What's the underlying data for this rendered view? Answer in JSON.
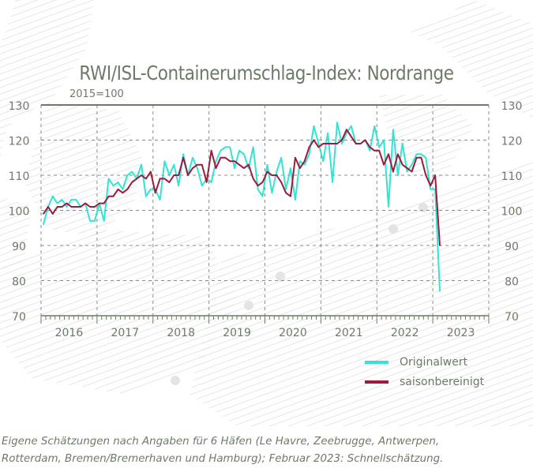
{
  "chart_data": {
    "type": "line",
    "title": "RWI/ISL-Containerumschlag-Index: Nordrange",
    "subtitle": "2015=100",
    "x_start": "2016-01",
    "x_end": "2023-02",
    "frequency": "monthly",
    "xtick_labels": [
      "2016",
      "2017",
      "2018",
      "2019",
      "2020",
      "2021",
      "2022",
      "2023"
    ],
    "ylim": [
      70,
      130
    ],
    "yticks": [
      70,
      80,
      90,
      100,
      110,
      120,
      130
    ],
    "grid": true,
    "legend_position": "bottom-right",
    "series": [
      {
        "name": "Originalwert",
        "color": "#33e3d3",
        "values": [
          96,
          101,
          104,
          102,
          103,
          101,
          103,
          103,
          101,
          102,
          97,
          97,
          102,
          97,
          109,
          107,
          108,
          106,
          110,
          111,
          109,
          113,
          104,
          106,
          106,
          103,
          114,
          110,
          113,
          107,
          116,
          110,
          115,
          112,
          107,
          109,
          108,
          114,
          117,
          118,
          118,
          112,
          117,
          116,
          112,
          118,
          106,
          104,
          113,
          105,
          111,
          115,
          106,
          112,
          103,
          114,
          113,
          116,
          124,
          119,
          114,
          122,
          108,
          125,
          119,
          122,
          124,
          119,
          119,
          120,
          117,
          124,
          118,
          120,
          101,
          123,
          110,
          119,
          111,
          113,
          116,
          116,
          115,
          106,
          106,
          77
        ]
      },
      {
        "name": "saisonbereinigt",
        "color": "#9b1c3c",
        "values": [
          99,
          101,
          99,
          101,
          101,
          102,
          101,
          101,
          101,
          102,
          101,
          101,
          102,
          102,
          104,
          104,
          106,
          105,
          106,
          108,
          109,
          110,
          109,
          111,
          105,
          109,
          109,
          108,
          110,
          110,
          115,
          110,
          112,
          113,
          113,
          108,
          117,
          112,
          115,
          115,
          114,
          114,
          113,
          112,
          113,
          109,
          107,
          108,
          111,
          110,
          110,
          108,
          105,
          104,
          115,
          112,
          114,
          118,
          120,
          118,
          119,
          119,
          119,
          119,
          120,
          123,
          121,
          119,
          119,
          120,
          118,
          117,
          117,
          113,
          116,
          111,
          116,
          113,
          112,
          111,
          115,
          115,
          110,
          107,
          110,
          90
        ]
      }
    ]
  },
  "footnote": {
    "line1": "Eigene Schätzungen nach Angaben für 6 Häfen (Le Havre, Zeebrugge, Antwerpen,",
    "line2": "Rotterdam, Bremen/Bremerhaven und Hamburg); Februar 2023: Schnellschätzung."
  }
}
